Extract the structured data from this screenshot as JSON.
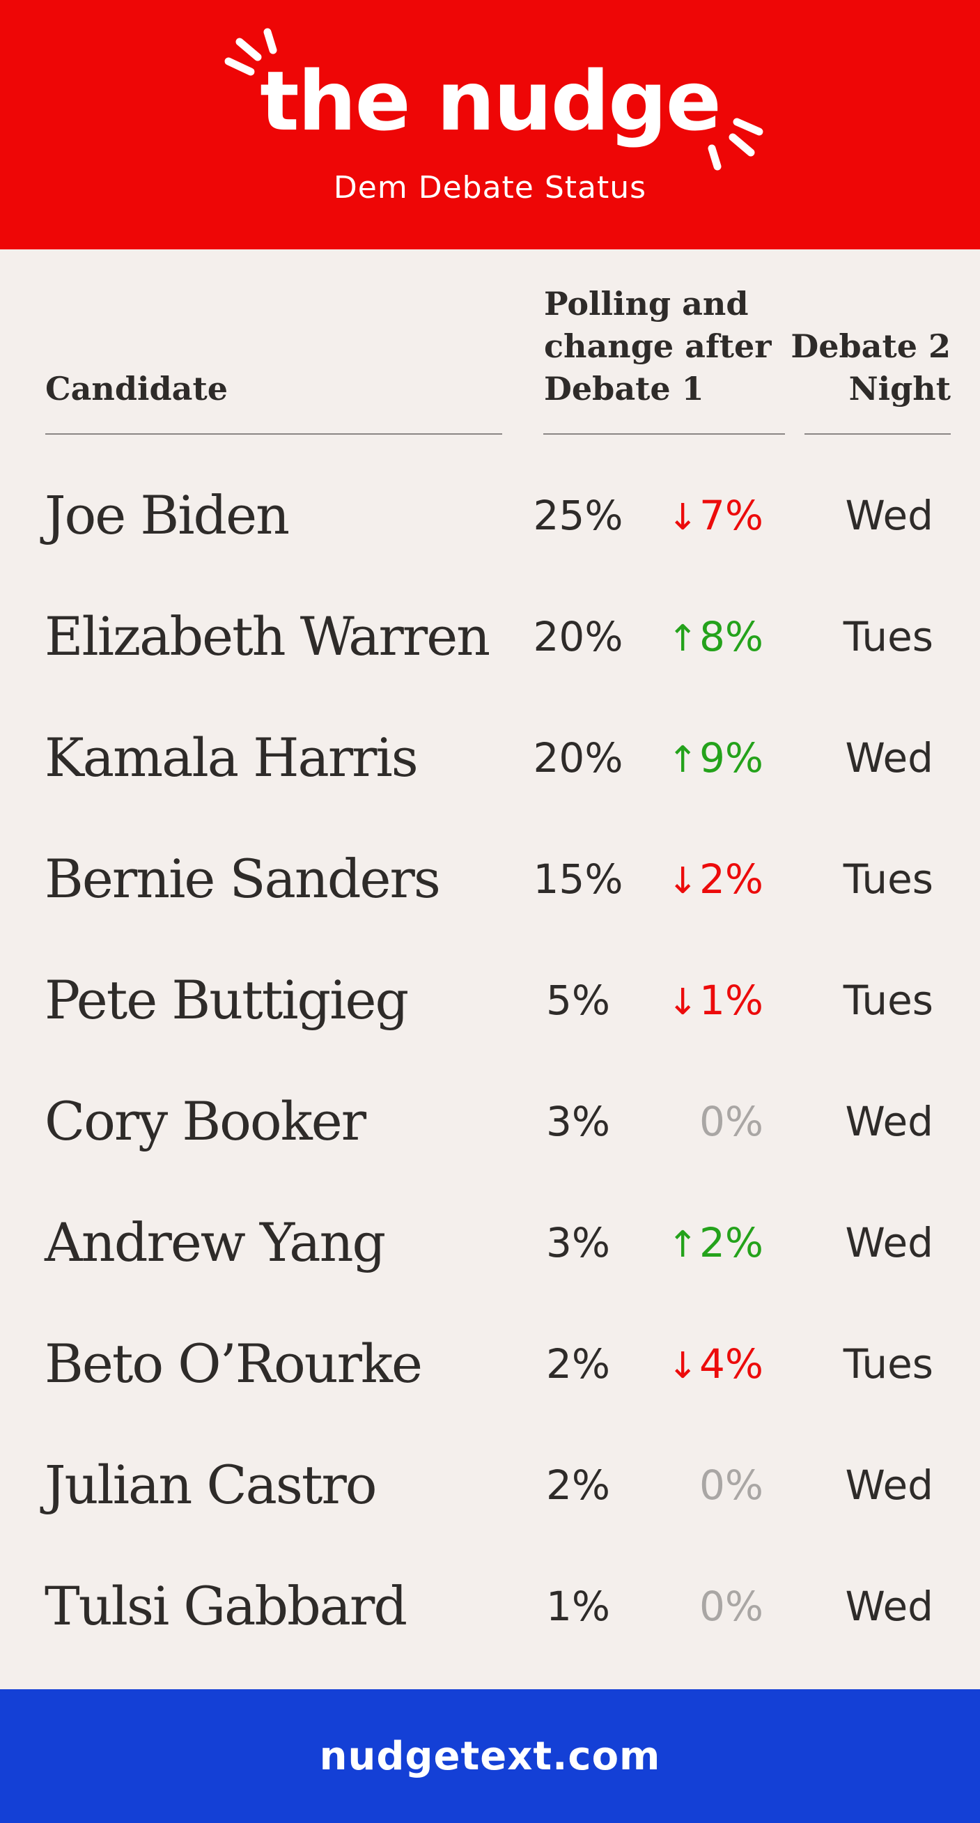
{
  "header": {
    "brand": "the nudge",
    "subtitle": "Dem Debate Status",
    "background": "#ee0606"
  },
  "table": {
    "columns": {
      "candidate": "Candidate",
      "polling_line1": "Polling and",
      "polling_line2": "change after",
      "polling_line3": "Debate 1",
      "night_line1": "Debate 2",
      "night_line2": "Night"
    },
    "rows": [
      {
        "name": "Joe Biden",
        "poll": "25%",
        "change_arrow": "↓",
        "change": "7%",
        "direction": "down",
        "night": "Wed"
      },
      {
        "name": "Elizabeth Warren",
        "poll": "20%",
        "change_arrow": "↑",
        "change": "8%",
        "direction": "up",
        "night": "Tues"
      },
      {
        "name": "Kamala Harris",
        "poll": "20%",
        "change_arrow": "↑",
        "change": "9%",
        "direction": "up",
        "night": "Wed"
      },
      {
        "name": "Bernie Sanders",
        "poll": "15%",
        "change_arrow": "↓",
        "change": "2%",
        "direction": "down",
        "night": "Tues"
      },
      {
        "name": "Pete Buttigieg",
        "poll": "5%",
        "change_arrow": "↓",
        "change": "1%",
        "direction": "down",
        "night": "Tues"
      },
      {
        "name": "Cory Booker",
        "poll": "3%",
        "change_arrow": "",
        "change": "0%",
        "direction": "flat",
        "night": "Wed"
      },
      {
        "name": "Andrew Yang",
        "poll": "3%",
        "change_arrow": "↑",
        "change": "2%",
        "direction": "up",
        "night": "Wed"
      },
      {
        "name": "Beto O’Rourke",
        "poll": "2%",
        "change_arrow": "↓",
        "change": "4%",
        "direction": "down",
        "night": "Tues"
      },
      {
        "name": "Julian Castro",
        "poll": "2%",
        "change_arrow": "",
        "change": "0%",
        "direction": "flat",
        "night": "Wed"
      },
      {
        "name": "Tulsi Gabbard",
        "poll": "1%",
        "change_arrow": "",
        "change": "0%",
        "direction": "flat",
        "night": "Wed"
      }
    ],
    "colors": {
      "down": "#ec0b0b",
      "up": "#24a21b",
      "flat": "#a9a6a4"
    }
  },
  "footer": {
    "link": "nudgetext.com",
    "background": "#1440d6"
  }
}
